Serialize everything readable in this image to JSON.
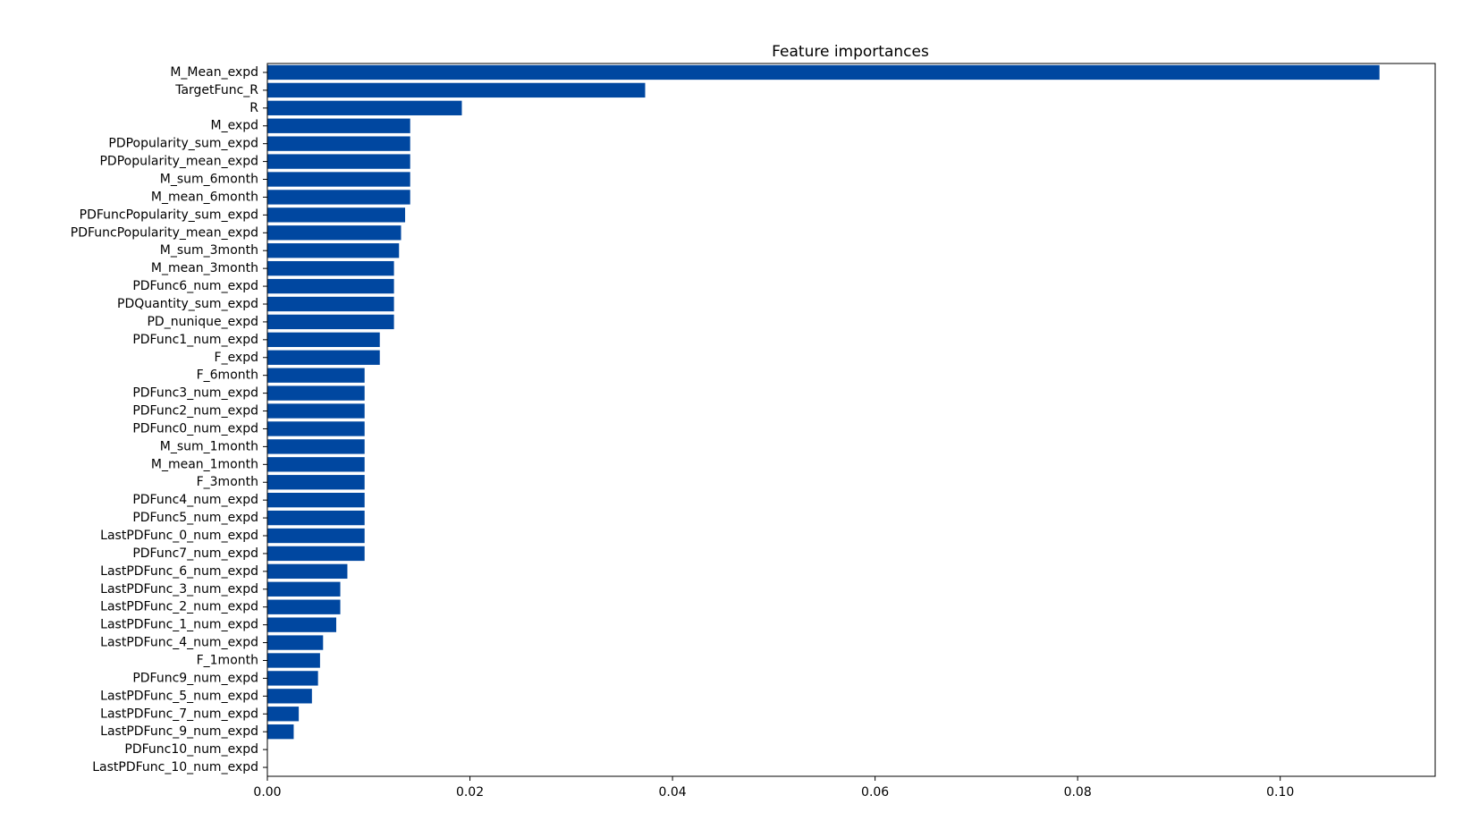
{
  "chart_data": {
    "type": "bar",
    "orientation": "horizontal",
    "title": "Feature importances",
    "xlabel": "",
    "ylabel": "",
    "xlim": [
      0,
      0.1153
    ],
    "xticks": [
      0.0,
      0.02,
      0.04,
      0.06,
      0.08,
      0.1
    ],
    "xtick_labels": [
      "0.00",
      "0.02",
      "0.04",
      "0.06",
      "0.08",
      "0.10"
    ],
    "grid": false,
    "bar_color": "#0047A0",
    "categories": [
      "M_Mean_expd",
      "TargetFunc_R",
      "R",
      "M_expd",
      "PDPopularity_sum_expd",
      "PDPopularity_mean_expd",
      "M_sum_6month",
      "M_mean_6month",
      "PDFuncPopularity_sum_expd",
      "PDFuncPopularity_mean_expd",
      "M_sum_3month",
      "M_mean_3month",
      "PDFunc6_num_expd",
      "PDQuantity_sum_expd",
      "PD_nunique_expd",
      "PDFunc1_num_expd",
      "F_expd",
      "F_6month",
      "PDFunc3_num_expd",
      "PDFunc2_num_expd",
      "PDFunc0_num_expd",
      "M_sum_1month",
      "M_mean_1month",
      "F_3month",
      "PDFunc4_num_expd",
      "PDFunc5_num_expd",
      "LastPDFunc_0_num_expd",
      "PDFunc7_num_expd",
      "LastPDFunc_6_num_expd",
      "LastPDFunc_3_num_expd",
      "LastPDFunc_2_num_expd",
      "LastPDFunc_1_num_expd",
      "LastPDFunc_4_num_expd",
      "F_1month",
      "PDFunc9_num_expd",
      "LastPDFunc_5_num_expd",
      "LastPDFunc_7_num_expd",
      "LastPDFunc_9_num_expd",
      "PDFunc10_num_expd",
      "LastPDFunc_10_num_expd"
    ],
    "values": [
      0.1098,
      0.0373,
      0.0192,
      0.0141,
      0.0141,
      0.0141,
      0.0141,
      0.0141,
      0.0136,
      0.0132,
      0.013,
      0.0125,
      0.0125,
      0.0125,
      0.0125,
      0.0111,
      0.0111,
      0.0096,
      0.0096,
      0.0096,
      0.0096,
      0.0096,
      0.0096,
      0.0096,
      0.0096,
      0.0096,
      0.0096,
      0.0096,
      0.0079,
      0.0072,
      0.0072,
      0.0068,
      0.0055,
      0.0052,
      0.005,
      0.0044,
      0.0031,
      0.0026,
      0.0,
      0.0
    ]
  }
}
